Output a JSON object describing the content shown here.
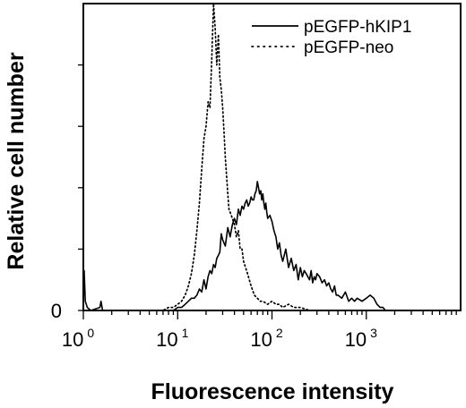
{
  "chart_data": {
    "type": "line",
    "xscale": "log",
    "xlim": [
      1,
      10000
    ],
    "ylim": [
      0,
      100
    ],
    "xlabel": "Fluorescence intensity",
    "ylabel": "Relative cell number",
    "y_tick_labels": [
      {
        "value": 0,
        "label": "0"
      }
    ],
    "y_minor_ticks": [
      20,
      40,
      60,
      80
    ],
    "x_tick_labels": [
      {
        "value": 1,
        "base": "10",
        "exp": "0"
      },
      {
        "value": 10,
        "base": "10",
        "exp": "1"
      },
      {
        "value": 100,
        "base": "10",
        "exp": "2"
      },
      {
        "value": 1000,
        "base": "10",
        "exp": "3"
      }
    ],
    "legend_position": "top-right",
    "series": [
      {
        "name": "pEGFP-hKIP1",
        "style": "solid",
        "color": "#000000",
        "x": [
          1.0,
          1.02,
          1.05,
          1.1,
          1.2,
          1.5,
          1.54,
          1.6,
          3,
          5,
          8,
          9,
          10,
          11,
          12,
          13,
          14,
          15,
          16,
          17,
          18,
          19,
          20,
          21,
          22,
          23,
          24,
          25,
          26,
          27,
          28,
          29,
          30,
          32,
          34,
          36,
          38,
          40,
          42,
          44,
          46,
          48,
          50,
          52,
          54,
          56,
          58,
          60,
          62,
          64,
          66,
          68,
          70,
          72,
          74,
          76,
          78,
          80,
          82,
          84,
          86,
          88,
          90,
          95,
          100,
          105,
          110,
          115,
          120,
          125,
          130,
          140,
          150,
          160,
          170,
          180,
          190,
          200,
          210,
          220,
          230,
          240,
          250,
          260,
          270,
          280,
          290,
          300,
          320,
          340,
          360,
          380,
          400,
          420,
          440,
          460,
          480,
          500,
          550,
          600,
          650,
          700,
          750,
          800,
          900,
          1000,
          1100,
          1200,
          1300,
          1400,
          1500,
          1600
        ],
        "y": [
          2,
          13,
          3,
          1,
          0,
          1,
          3,
          0,
          0,
          0,
          0,
          0,
          1,
          1,
          2,
          3,
          4,
          4,
          5,
          7,
          6,
          10,
          7,
          11,
          13,
          12,
          15,
          14,
          17,
          18,
          19,
          25,
          23,
          21,
          27,
          24,
          28,
          30,
          28,
          33,
          31,
          34,
          33,
          35,
          36,
          34,
          35,
          37,
          36,
          36,
          38,
          39,
          42,
          40,
          38,
          39,
          36,
          38,
          35,
          33,
          35,
          32,
          30,
          31,
          29,
          26,
          24,
          20,
          22,
          18,
          16,
          20,
          14,
          17,
          13,
          15,
          10,
          14,
          11,
          13,
          12,
          11,
          10,
          13,
          9,
          11,
          10,
          12,
          11,
          9,
          10,
          8,
          9,
          7,
          6,
          8,
          5,
          5,
          4,
          6,
          3,
          4,
          3,
          4,
          3,
          4,
          5,
          4,
          2,
          1,
          1,
          0
        ]
      },
      {
        "name": "pEGFP-neo",
        "style": "dotted",
        "color": "#000000",
        "x": [
          1,
          5,
          7,
          8,
          9,
          10,
          11,
          12,
          13,
          14,
          15,
          16,
          17,
          18,
          19,
          20,
          21,
          22,
          23,
          24,
          25,
          26,
          27,
          28,
          29,
          30,
          31,
          32,
          33,
          34,
          35,
          36,
          38,
          40,
          42,
          44,
          46,
          48,
          50,
          55,
          60,
          65,
          70,
          75,
          80,
          90,
          100,
          110,
          120,
          130,
          150,
          170,
          200,
          250
        ],
        "y": [
          0,
          0,
          0,
          1,
          1,
          2,
          3,
          5,
          8,
          12,
          18,
          26,
          35,
          46,
          56,
          60,
          68,
          66,
          82,
          100,
          92,
          80,
          90,
          76,
          72,
          66,
          58,
          50,
          44,
          38,
          33,
          32,
          30,
          28,
          24,
          26,
          20,
          20,
          16,
          12,
          8,
          5,
          4,
          3,
          3,
          2,
          3,
          2,
          2,
          1,
          2,
          1,
          1,
          0
        ]
      }
    ]
  }
}
